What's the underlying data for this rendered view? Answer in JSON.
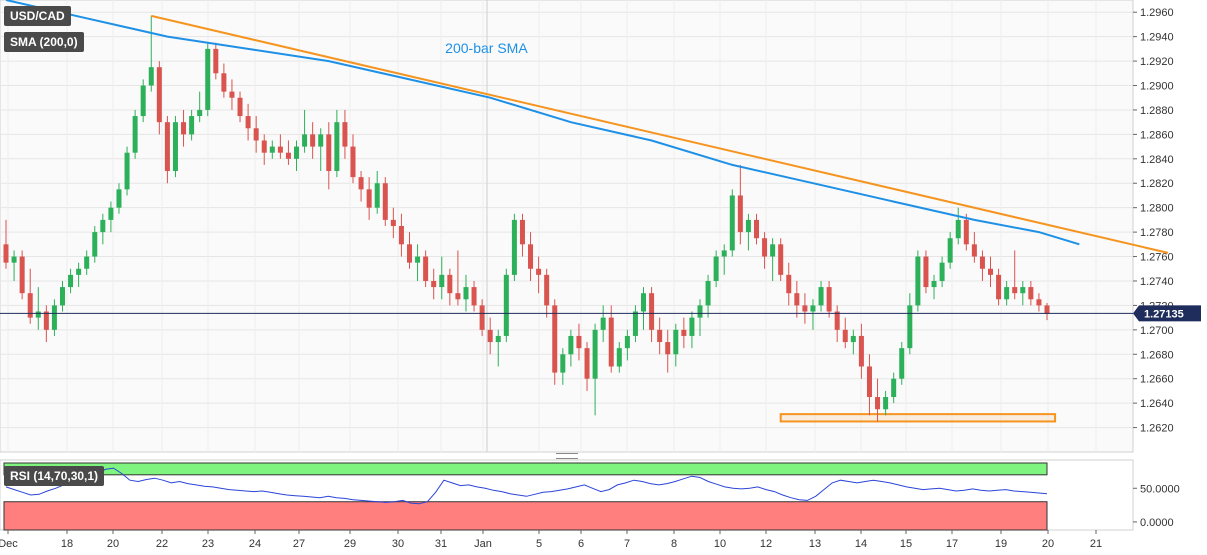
{
  "header": {
    "symbol": "USD/CAD",
    "indicator": "SMA (200,0)"
  },
  "rsi_label": "RSI (14,70,30,1)",
  "last_price_label": "1.27135",
  "colors": {
    "bull": "#2db05a",
    "bear": "#d9534f",
    "sma": "#1e90e6",
    "trendline": "#f5941f",
    "rsi_line": "#2b44d8",
    "overbought": "#7ff57f",
    "oversold": "#ff7f7f",
    "last_price_badge": "#1f2d5c"
  },
  "chart_data": [
    {
      "type": "candlestick",
      "title": "",
      "ylim": [
        1.26,
        1.297
      ],
      "y_ticks": [
        "1.2620",
        "1.2640",
        "1.2660",
        "1.2680",
        "1.2700",
        "1.2720",
        "1.2740",
        "1.2760",
        "1.2780",
        "1.2800",
        "1.2820",
        "1.2840",
        "1.2860",
        "1.2880",
        "1.2900",
        "1.2920",
        "1.2940",
        "1.2960"
      ],
      "x_ticks": [
        "Dec",
        "18",
        "20",
        "22",
        "23",
        "24",
        "27",
        "29",
        "30",
        "31",
        "Jan",
        "5",
        "6",
        "7",
        "8",
        "10",
        "12",
        "13",
        "14",
        "15",
        "17",
        "19",
        "20",
        "21"
      ],
      "candles": [
        [
          1.277,
          1.279,
          1.275,
          1.2755
        ],
        [
          1.2755,
          1.2765,
          1.274,
          1.276
        ],
        [
          1.276,
          1.2765,
          1.2725,
          1.273
        ],
        [
          1.273,
          1.275,
          1.2705,
          1.271
        ],
        [
          1.271,
          1.2735,
          1.27,
          1.2715
        ],
        [
          1.2715,
          1.272,
          1.269,
          1.27
        ],
        [
          1.27,
          1.2725,
          1.2695,
          1.272
        ],
        [
          1.272,
          1.274,
          1.2715,
          1.2735
        ],
        [
          1.2735,
          1.275,
          1.273,
          1.2745
        ],
        [
          1.2745,
          1.2755,
          1.2735,
          1.275
        ],
        [
          1.275,
          1.2765,
          1.2745,
          1.276
        ],
        [
          1.276,
          1.2785,
          1.2755,
          1.278
        ],
        [
          1.278,
          1.2795,
          1.277,
          1.279
        ],
        [
          1.279,
          1.2805,
          1.278,
          1.28
        ],
        [
          1.28,
          1.282,
          1.2795,
          1.2815
        ],
        [
          1.2815,
          1.285,
          1.281,
          1.2845
        ],
        [
          1.2845,
          1.288,
          1.284,
          1.2875
        ],
        [
          1.2875,
          1.2905,
          1.287,
          1.29
        ],
        [
          1.29,
          1.2957,
          1.2895,
          1.2915
        ],
        [
          1.2915,
          1.292,
          1.286,
          1.287
        ],
        [
          1.287,
          1.2875,
          1.282,
          1.283
        ],
        [
          1.283,
          1.2875,
          1.2825,
          1.287
        ],
        [
          1.287,
          1.288,
          1.285,
          1.286
        ],
        [
          1.286,
          1.288,
          1.2855,
          1.2875
        ],
        [
          1.2875,
          1.2895,
          1.287,
          1.288
        ],
        [
          1.288,
          1.2935,
          1.2875,
          1.293
        ],
        [
          1.293,
          1.2935,
          1.2905,
          1.291
        ],
        [
          1.291,
          1.2918,
          1.289,
          1.2895
        ],
        [
          1.2895,
          1.2905,
          1.288,
          1.289
        ],
        [
          1.289,
          1.2895,
          1.287,
          1.2875
        ],
        [
          1.2875,
          1.2885,
          1.2855,
          1.2865
        ],
        [
          1.2865,
          1.2875,
          1.2845,
          1.2855
        ],
        [
          1.2855,
          1.286,
          1.2835,
          1.2845
        ],
        [
          1.2845,
          1.2855,
          1.284,
          1.285
        ],
        [
          1.285,
          1.286,
          1.284,
          1.2845
        ],
        [
          1.2845,
          1.2855,
          1.2835,
          1.284
        ],
        [
          1.284,
          1.2855,
          1.283,
          1.285
        ],
        [
          1.285,
          1.288,
          1.2845,
          1.286
        ],
        [
          1.286,
          1.287,
          1.284,
          1.285
        ],
        [
          1.285,
          1.2865,
          1.283,
          1.286
        ],
        [
          1.286,
          1.287,
          1.2815,
          1.283
        ],
        [
          1.283,
          1.288,
          1.2825,
          1.287
        ],
        [
          1.287,
          1.288,
          1.284,
          1.285
        ],
        [
          1.285,
          1.286,
          1.282,
          1.2825
        ],
        [
          1.2825,
          1.283,
          1.2805,
          1.2815
        ],
        [
          1.2815,
          1.2825,
          1.279,
          1.28
        ],
        [
          1.28,
          1.283,
          1.2795,
          1.282
        ],
        [
          1.282,
          1.2825,
          1.2785,
          1.279
        ],
        [
          1.279,
          1.28,
          1.2775,
          1.2785
        ],
        [
          1.2785,
          1.2795,
          1.276,
          1.277
        ],
        [
          1.277,
          1.278,
          1.275,
          1.2755
        ],
        [
          1.2755,
          1.277,
          1.274,
          1.276
        ],
        [
          1.276,
          1.2765,
          1.2735,
          1.274
        ],
        [
          1.274,
          1.275,
          1.2725,
          1.2735
        ],
        [
          1.2735,
          1.276,
          1.2725,
          1.2745
        ],
        [
          1.2745,
          1.275,
          1.272,
          1.273
        ],
        [
          1.273,
          1.2765,
          1.272,
          1.2725
        ],
        [
          1.2725,
          1.2745,
          1.2715,
          1.2735
        ],
        [
          1.2735,
          1.274,
          1.2715,
          1.272
        ],
        [
          1.272,
          1.2725,
          1.2695,
          1.27
        ],
        [
          1.27,
          1.271,
          1.268,
          1.269
        ],
        [
          1.269,
          1.27,
          1.267,
          1.2695
        ],
        [
          1.2695,
          1.275,
          1.269,
          1.2745
        ],
        [
          1.2745,
          1.2795,
          1.274,
          1.279
        ],
        [
          1.279,
          1.2795,
          1.276,
          1.277
        ],
        [
          1.277,
          1.278,
          1.274,
          1.275
        ],
        [
          1.275,
          1.276,
          1.273,
          1.2745
        ],
        [
          1.2745,
          1.275,
          1.271,
          1.272
        ],
        [
          1.272,
          1.2725,
          1.2655,
          1.2665
        ],
        [
          1.2665,
          1.2685,
          1.2655,
          1.268
        ],
        [
          1.268,
          1.27,
          1.267,
          1.2695
        ],
        [
          1.2695,
          1.2705,
          1.2675,
          1.2685
        ],
        [
          1.2685,
          1.269,
          1.265,
          1.266
        ],
        [
          1.266,
          1.2705,
          1.263,
          1.27
        ],
        [
          1.27,
          1.272,
          1.269,
          1.271
        ],
        [
          1.271,
          1.272,
          1.2665,
          1.267
        ],
        [
          1.267,
          1.269,
          1.2665,
          1.2685
        ],
        [
          1.2685,
          1.27,
          1.2675,
          1.2695
        ],
        [
          1.2695,
          1.272,
          1.269,
          1.2715
        ],
        [
          1.2715,
          1.2735,
          1.27,
          1.273
        ],
        [
          1.273,
          1.2735,
          1.269,
          1.27
        ],
        [
          1.27,
          1.271,
          1.268,
          1.269
        ],
        [
          1.269,
          1.27,
          1.2665,
          1.268
        ],
        [
          1.268,
          1.2705,
          1.267,
          1.27
        ],
        [
          1.27,
          1.271,
          1.2685,
          1.2695
        ],
        [
          1.2695,
          1.2715,
          1.2685,
          1.271
        ],
        [
          1.271,
          1.2725,
          1.2695,
          1.272
        ],
        [
          1.272,
          1.2745,
          1.271,
          1.274
        ],
        [
          1.274,
          1.2765,
          1.2735,
          1.276
        ],
        [
          1.276,
          1.277,
          1.2745,
          1.2765
        ],
        [
          1.2765,
          1.2815,
          1.276,
          1.281
        ],
        [
          1.281,
          1.2835,
          1.277,
          1.278
        ],
        [
          1.278,
          1.2795,
          1.2765,
          1.279
        ],
        [
          1.279,
          1.2795,
          1.277,
          1.2775
        ],
        [
          1.2775,
          1.278,
          1.275,
          1.276
        ],
        [
          1.276,
          1.2775,
          1.274,
          1.277
        ],
        [
          1.277,
          1.2775,
          1.274,
          1.2745
        ],
        [
          1.2745,
          1.2755,
          1.272,
          1.273
        ],
        [
          1.273,
          1.274,
          1.271,
          1.272
        ],
        [
          1.272,
          1.273,
          1.2705,
          1.2715
        ],
        [
          1.2715,
          1.2725,
          1.27,
          1.272
        ],
        [
          1.272,
          1.274,
          1.2715,
          1.2735
        ],
        [
          1.2735,
          1.274,
          1.271,
          1.2715
        ],
        [
          1.2715,
          1.272,
          1.269,
          1.27
        ],
        [
          1.27,
          1.271,
          1.2685,
          1.269
        ],
        [
          1.269,
          1.27,
          1.268,
          1.2695
        ],
        [
          1.2695,
          1.2705,
          1.266,
          1.267
        ],
        [
          1.267,
          1.268,
          1.263,
          1.2645
        ],
        [
          1.2645,
          1.266,
          1.2625,
          1.2635
        ],
        [
          1.2635,
          1.265,
          1.263,
          1.2645
        ],
        [
          1.2645,
          1.2665,
          1.264,
          1.266
        ],
        [
          1.266,
          1.269,
          1.2655,
          1.2685
        ],
        [
          1.2685,
          1.273,
          1.268,
          1.272
        ],
        [
          1.272,
          1.2765,
          1.2715,
          1.276
        ],
        [
          1.276,
          1.2765,
          1.273,
          1.2735
        ],
        [
          1.2735,
          1.2745,
          1.2725,
          1.274
        ],
        [
          1.274,
          1.276,
          1.2735,
          1.2755
        ],
        [
          1.2755,
          1.278,
          1.275,
          1.2775
        ],
        [
          1.2775,
          1.28,
          1.277,
          1.279
        ],
        [
          1.279,
          1.2795,
          1.2765,
          1.277
        ],
        [
          1.277,
          1.278,
          1.2755,
          1.276
        ],
        [
          1.276,
          1.2765,
          1.274,
          1.275
        ],
        [
          1.275,
          1.276,
          1.2735,
          1.2745
        ],
        [
          1.2745,
          1.275,
          1.272,
          1.2725
        ],
        [
          1.2725,
          1.274,
          1.272,
          1.2735
        ],
        [
          1.2735,
          1.2765,
          1.2725,
          1.273
        ],
        [
          1.273,
          1.274,
          1.272,
          1.2735
        ],
        [
          1.2735,
          1.274,
          1.272,
          1.2725
        ],
        [
          1.2725,
          1.273,
          1.2715,
          1.272
        ],
        [
          1.272,
          1.2722,
          1.2708,
          1.2713
        ]
      ],
      "sma_200": [
        [
          0,
          1.297
        ],
        [
          10,
          1.2955
        ],
        [
          20,
          1.294
        ],
        [
          30,
          1.293
        ],
        [
          40,
          1.292
        ],
        [
          50,
          1.2905
        ],
        [
          60,
          1.289
        ],
        [
          70,
          1.287
        ],
        [
          80,
          1.2855
        ],
        [
          90,
          1.2835
        ],
        [
          100,
          1.282
        ],
        [
          110,
          1.2805
        ],
        [
          120,
          1.279
        ],
        [
          128,
          1.278
        ],
        [
          133,
          1.277
        ]
      ],
      "sma_label": "200-bar SMA",
      "trendline": [
        [
          18,
          1.2957
        ],
        [
          144,
          1.2763
        ]
      ],
      "support_zone": [
        1.2625,
        1.2631
      ],
      "last_price": 1.27135
    },
    {
      "type": "line",
      "title": "",
      "ylim": [
        -12,
        92
      ],
      "y_ticks": [
        "0.0000",
        "50.0000"
      ],
      "overbought": 70,
      "oversold": 30,
      "values": [
        52,
        48,
        44,
        40,
        41,
        46,
        50,
        55,
        58,
        60,
        64,
        70,
        78,
        80,
        72,
        62,
        60,
        63,
        65,
        62,
        58,
        60,
        57,
        55,
        53,
        52,
        50,
        48,
        47,
        46,
        45,
        46,
        44,
        42,
        40,
        39,
        38,
        37,
        36,
        38,
        36,
        35,
        33,
        32,
        31,
        30,
        29,
        30,
        32,
        28,
        27,
        30,
        44,
        62,
        58,
        54,
        55,
        52,
        50,
        47,
        45,
        42,
        40,
        38,
        41,
        44,
        45,
        47,
        49,
        52,
        55,
        50,
        45,
        48,
        55,
        58,
        62,
        60,
        57,
        55,
        57,
        60,
        64,
        68,
        66,
        60,
        56,
        52,
        50,
        49,
        50,
        52,
        48,
        45,
        40,
        36,
        33,
        32,
        38,
        48,
        58,
        62,
        60,
        58,
        60,
        62,
        60,
        58,
        55,
        52,
        50,
        48,
        49,
        50,
        48,
        46,
        47,
        49,
        47,
        46,
        47,
        48,
        46,
        45,
        44,
        43,
        42
      ]
    }
  ]
}
